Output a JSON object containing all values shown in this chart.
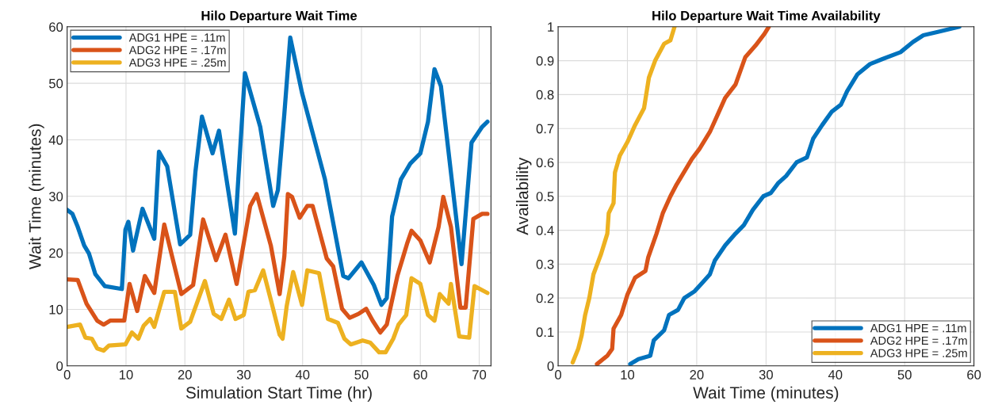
{
  "chart_data": [
    {
      "type": "line",
      "title": "Hilo Departure Wait Time",
      "xlabel": "Simulation Start Time (hr)",
      "ylabel": "Wait Time (minutes)",
      "xlim": [
        0,
        72
      ],
      "xticks": [
        0,
        10,
        20,
        30,
        40,
        50,
        60,
        70
      ],
      "ylim": [
        0,
        60
      ],
      "yticks": [
        0,
        10,
        20,
        30,
        40,
        50,
        60
      ],
      "grid": true,
      "legend": "top left",
      "line_style": "solid",
      "series": [
        {
          "name": "ADG1 HPE = .11m",
          "color": "#0072bd",
          "x": [
            0,
            0.9,
            1.8,
            2.9,
            3.7,
            4.8,
            6.4,
            9.3,
            9.9,
            10.4,
            11.2,
            12.8,
            14.8,
            15.6,
            17.0,
            19.2,
            20.9,
            21.8,
            22.9,
            24.7,
            25.8,
            28.5,
            30.2,
            32.8,
            35.0,
            35.8,
            36.9,
            37.9,
            39.9,
            43.8,
            46.9,
            47.8,
            50.0,
            52.1,
            53.4,
            54.3,
            55.2,
            56.7,
            58.3,
            60.0,
            61.3,
            62.4,
            63.5,
            67.0,
            68.7,
            70.5,
            71.4
          ],
          "values": [
            27.6,
            26.9,
            24.6,
            21.3,
            19.9,
            16.2,
            14.1,
            13.6,
            24.1,
            25.5,
            20.4,
            27.8,
            22.5,
            37.9,
            35.3,
            21.5,
            23.2,
            34.4,
            44.1,
            37.6,
            41.6,
            23.4,
            51.8,
            42.3,
            28.3,
            31.1,
            44.6,
            58.1,
            48.3,
            33.0,
            15.9,
            15.5,
            18.3,
            14.3,
            10.8,
            12.0,
            26.4,
            33.0,
            35.8,
            37.6,
            43.2,
            52.5,
            49.5,
            18.0,
            39.5,
            42.3,
            43.2
          ]
        },
        {
          "name": "ADG2 HPE = .17m",
          "color": "#d95319",
          "x": [
            0,
            1.8,
            3.3,
            5.1,
            6.2,
            7.3,
            9.7,
            10.6,
            11.9,
            13.2,
            14.8,
            16.5,
            19.4,
            21.4,
            23.1,
            25.3,
            26.9,
            28.8,
            31.1,
            32.2,
            34.6,
            36.1,
            36.9,
            37.5,
            38.2,
            39.5,
            40.8,
            41.7,
            44.1,
            45.2,
            46.7,
            48.0,
            49.5,
            50.8,
            51.9,
            53.2,
            54.3,
            56.1,
            57.8,
            58.5,
            60.0,
            61.6,
            63.1,
            63.9,
            65.2,
            66.8,
            67.7,
            69.0,
            70.5,
            71.4
          ],
          "values": [
            15.3,
            15.2,
            11.0,
            8.0,
            7.3,
            8.0,
            8.0,
            14.5,
            9.7,
            15.9,
            12.9,
            25.0,
            12.7,
            14.3,
            25.9,
            18.7,
            23.2,
            14.5,
            28.3,
            30.4,
            21.3,
            12.7,
            19.4,
            30.4,
            29.9,
            26.2,
            28.3,
            28.3,
            19.0,
            17.6,
            10.1,
            8.5,
            9.2,
            10.1,
            8.0,
            5.9,
            7.3,
            15.9,
            21.8,
            23.9,
            22.2,
            18.3,
            24.6,
            29.9,
            24.6,
            10.3,
            10.3,
            26.0,
            26.9,
            26.9
          ]
        },
        {
          "name": "ADG3 HPE = .25m",
          "color": "#edb120",
          "x": [
            0,
            2.2,
            3.1,
            4.2,
            5.1,
            6.2,
            7.1,
            9.9,
            11.0,
            12.1,
            13.0,
            14.1,
            14.8,
            16.5,
            18.3,
            19.4,
            20.9,
            23.4,
            24.9,
            26.2,
            27.5,
            28.6,
            30.0,
            30.8,
            31.9,
            33.3,
            34.6,
            36.1,
            36.6,
            37.3,
            38.4,
            39.9,
            40.8,
            42.8,
            44.3,
            46.0,
            47.1,
            48.2,
            50.2,
            51.5,
            53.0,
            54.1,
            55.4,
            56.3,
            57.6,
            58.5,
            60.0,
            61.3,
            62.4,
            63.3,
            64.8,
            65.2,
            66.6,
            68.3,
            69.2,
            71.4
          ],
          "values": [
            6.9,
            7.3,
            5.0,
            4.8,
            3.1,
            2.7,
            3.6,
            3.8,
            5.9,
            4.8,
            7.1,
            8.3,
            6.9,
            13.1,
            13.1,
            6.6,
            7.8,
            15.0,
            9.2,
            8.3,
            11.7,
            8.3,
            9.0,
            13.1,
            13.4,
            16.9,
            11.7,
            5.5,
            4.8,
            10.6,
            16.6,
            10.8,
            16.9,
            16.4,
            8.3,
            7.6,
            4.8,
            3.8,
            4.5,
            4.1,
            2.4,
            2.4,
            4.8,
            7.3,
            9.0,
            15.5,
            14.5,
            9.0,
            8.0,
            12.7,
            11.0,
            14.5,
            5.2,
            5.0,
            14.1,
            12.9
          ]
        }
      ]
    },
    {
      "type": "line",
      "title": "Hilo Departure Wait Time Availability",
      "xlabel": "Wait Time (minutes)",
      "ylabel": "Availability",
      "xlim": [
        0,
        60
      ],
      "xticks": [
        0,
        10,
        20,
        30,
        40,
        50,
        60
      ],
      "ylim": [
        0,
        1
      ],
      "yticks": [
        0,
        0.1,
        0.2,
        0.3,
        0.4,
        0.5,
        0.6,
        0.7,
        0.8,
        0.9,
        1
      ],
      "grid": true,
      "legend": "bottom right",
      "line_style": "solid",
      "series": [
        {
          "name": "ADG1 HPE = .11m",
          "color": "#0072bd",
          "x": [
            10.4,
            11.6,
            13.3,
            13.8,
            15.3,
            16.0,
            17.3,
            18.2,
            19.7,
            20.8,
            21.9,
            22.6,
            24.1,
            25.6,
            26.8,
            28.1,
            29.6,
            30.7,
            31.8,
            32.9,
            34.4,
            35.9,
            36.8,
            38.1,
            39.5,
            40.8,
            41.7,
            43.2,
            45.0,
            46.8,
            49.4,
            51.2,
            52.7,
            54.8,
            57.9
          ],
          "values": [
            0.005,
            0.02,
            0.03,
            0.075,
            0.105,
            0.15,
            0.165,
            0.2,
            0.22,
            0.245,
            0.27,
            0.31,
            0.355,
            0.39,
            0.415,
            0.46,
            0.5,
            0.51,
            0.54,
            0.56,
            0.6,
            0.615,
            0.67,
            0.71,
            0.75,
            0.77,
            0.81,
            0.86,
            0.89,
            0.905,
            0.925,
            0.955,
            0.975,
            0.985,
            1.0
          ]
        },
        {
          "name": "ADG2 HPE = .17m",
          "color": "#d95319",
          "x": [
            5.6,
            7.1,
            7.8,
            8.0,
            9.1,
            10.0,
            11.1,
            12.6,
            13.0,
            14.2,
            15.1,
            16.2,
            17.1,
            19.3,
            20.4,
            21.9,
            23.0,
            24.1,
            25.6,
            27.0,
            28.5,
            29.8,
            30.4
          ],
          "values": [
            0.005,
            0.03,
            0.05,
            0.11,
            0.15,
            0.21,
            0.26,
            0.28,
            0.32,
            0.39,
            0.45,
            0.5,
            0.535,
            0.61,
            0.64,
            0.69,
            0.74,
            0.79,
            0.83,
            0.91,
            0.945,
            0.98,
            1.0
          ]
        },
        {
          "name": "ADG3 HPE = .25m",
          "color": "#edb120",
          "x": [
            2.1,
            2.9,
            3.4,
            3.9,
            4.5,
            5.1,
            6.2,
            7.1,
            7.3,
            8.0,
            8.2,
            8.9,
            10.0,
            11.1,
            12.4,
            13.1,
            14.0,
            15.3,
            16.2,
            16.8
          ],
          "values": [
            0.01,
            0.05,
            0.09,
            0.15,
            0.2,
            0.27,
            0.33,
            0.39,
            0.45,
            0.48,
            0.57,
            0.62,
            0.66,
            0.71,
            0.76,
            0.85,
            0.9,
            0.95,
            0.96,
            1.0
          ]
        }
      ]
    }
  ]
}
